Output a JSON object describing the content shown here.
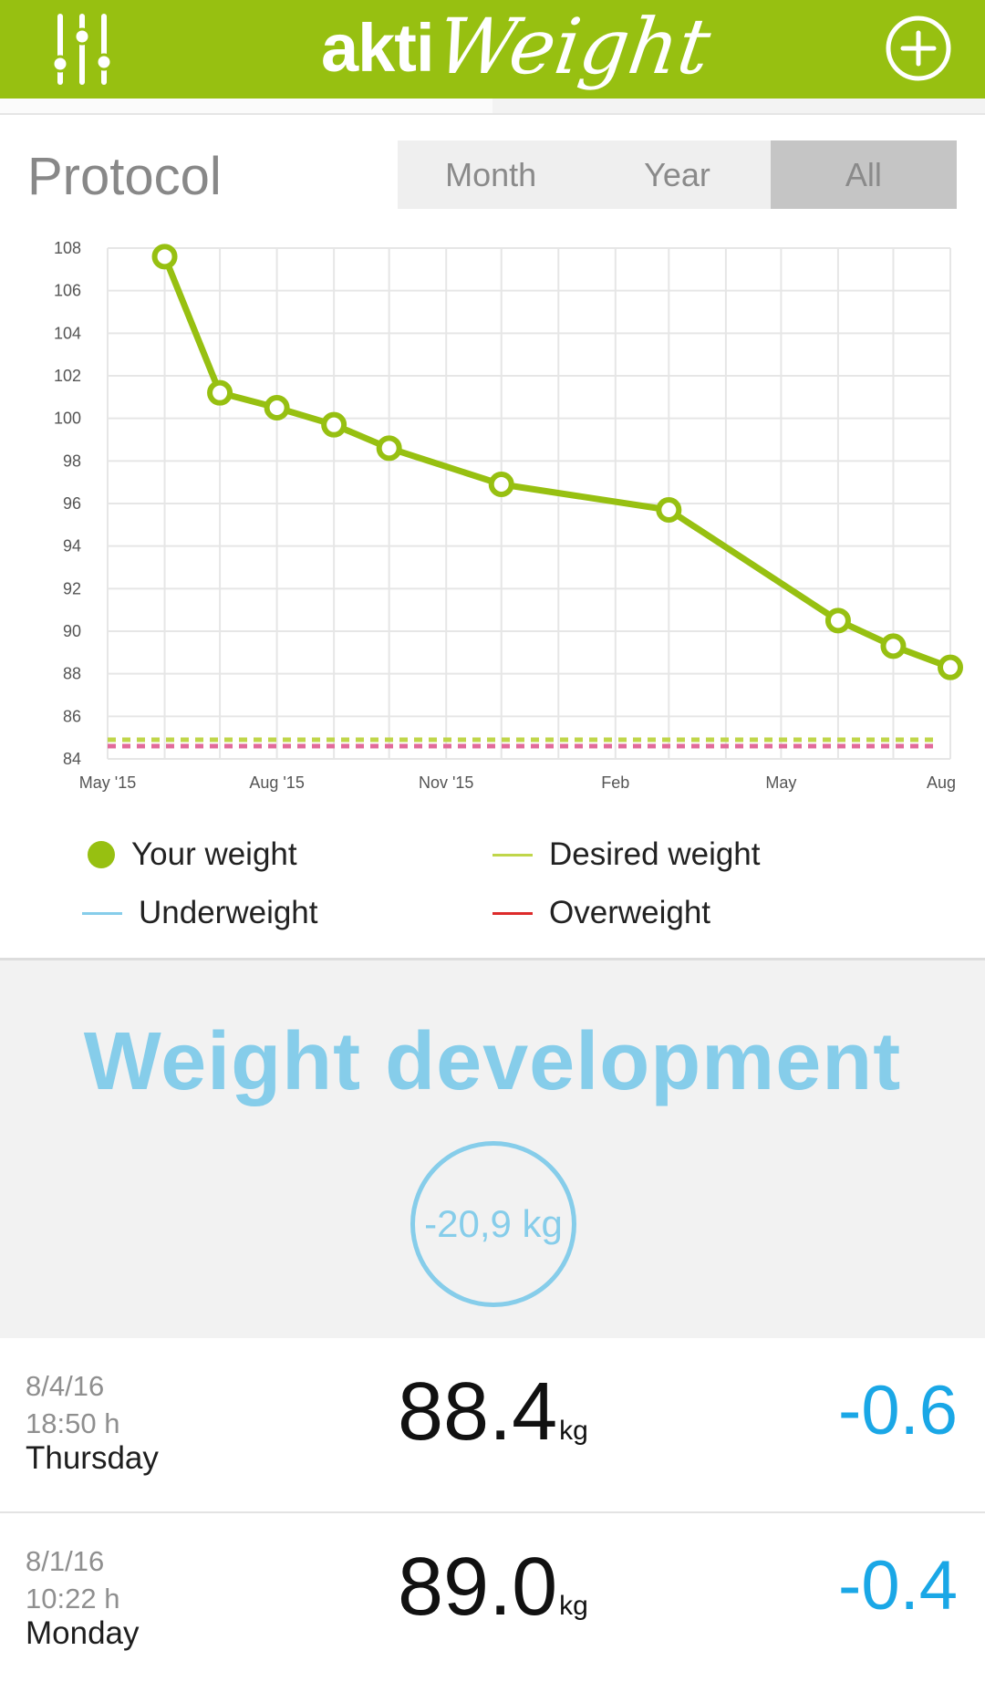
{
  "header": {
    "logo_part1": "akti",
    "logo_part2": "Weight",
    "menu_icon": "sliders-icon",
    "add_icon": "plus-circle-icon"
  },
  "protocol": {
    "title": "Protocol",
    "tabs": [
      {
        "label": "Month",
        "active": false
      },
      {
        "label": "Year",
        "active": false
      },
      {
        "label": "All",
        "active": true
      }
    ]
  },
  "chart_data": {
    "type": "line",
    "title": "",
    "xlabel": "",
    "ylabel": "",
    "ylim": [
      84,
      108
    ],
    "yticks": [
      84,
      86,
      88,
      90,
      92,
      94,
      96,
      98,
      100,
      102,
      104,
      106,
      108
    ],
    "xticks": [
      "May '15",
      "Aug '15",
      "Nov '15",
      "Feb",
      "May",
      "Aug"
    ],
    "grid": true,
    "series": [
      {
        "name": "Your weight",
        "color": "#97c011",
        "points": [
          {
            "x": "2015-06-01",
            "y": 107.6
          },
          {
            "x": "2015-07-01",
            "y": 101.2
          },
          {
            "x": "2015-08-01",
            "y": 100.5
          },
          {
            "x": "2015-09-01",
            "y": 99.7
          },
          {
            "x": "2015-10-01",
            "y": 98.6
          },
          {
            "x": "2015-12-01",
            "y": 96.9
          },
          {
            "x": "2016-03-01",
            "y": 95.7
          },
          {
            "x": "2016-06-01",
            "y": 90.5
          },
          {
            "x": "2016-07-01",
            "y": 89.3
          },
          {
            "x": "2016-08-01",
            "y": 88.3
          }
        ]
      },
      {
        "name": "Desired weight",
        "color": "#c0d64a",
        "style": "dashed",
        "y": 84.9
      },
      {
        "name": "Overweight",
        "color": "#e26a9a",
        "style": "dashed",
        "y": 84.6
      }
    ]
  },
  "legend": [
    {
      "label": "Your weight",
      "kind": "dot",
      "color": "#97c011"
    },
    {
      "label": "Desired weight",
      "kind": "line",
      "color": "#c0d64a"
    },
    {
      "label": "Underweight",
      "kind": "line",
      "color": "#86cdea"
    },
    {
      "label": "Overweight",
      "kind": "line",
      "color": "#dd2b2b"
    }
  ],
  "development": {
    "title": "Weight development",
    "change": "-20,9 kg"
  },
  "entries": [
    {
      "date": "8/4/16",
      "time": "18:50 h",
      "day": "Thursday",
      "weight": "88.4",
      "unit": "kg",
      "delta": "-0.6"
    },
    {
      "date": "8/1/16",
      "time": "10:22 h",
      "day": "Monday",
      "weight": "89.0",
      "unit": "kg",
      "delta": "-0.4"
    }
  ]
}
